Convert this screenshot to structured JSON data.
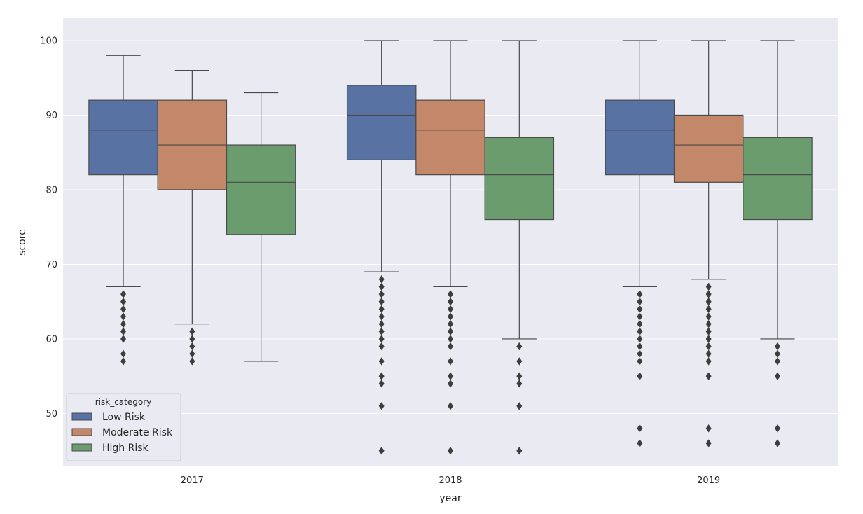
{
  "chart_data": {
    "type": "boxplot",
    "title": "",
    "xlabel": "year",
    "ylabel": "score",
    "ylim": [
      43,
      103
    ],
    "yticks": [
      50,
      60,
      70,
      80,
      90,
      100
    ],
    "grid": true,
    "categories": [
      "2017",
      "2018",
      "2019"
    ],
    "legend": {
      "title": "risk_category",
      "placement": "lower-left",
      "entries": [
        "Low Risk",
        "Moderate Risk",
        "High Risk"
      ]
    },
    "series": [
      {
        "name": "Low Risk",
        "color": "#5873a3",
        "boxes": [
          {
            "whisker_low": 67,
            "q1": 82,
            "median": 88,
            "q3": 92,
            "whisker_high": 98,
            "outliers": [
              66,
              65,
              64,
              63,
              62,
              61,
              60,
              58,
              57
            ]
          },
          {
            "whisker_low": 69,
            "q1": 84,
            "median": 90,
            "q3": 94,
            "whisker_high": 100,
            "outliers": [
              68,
              67,
              66,
              65,
              64,
              63,
              62,
              61,
              60,
              59,
              57,
              55,
              54,
              51,
              45
            ]
          },
          {
            "whisker_low": 67,
            "q1": 82,
            "median": 88,
            "q3": 92,
            "whisker_high": 100,
            "outliers": [
              66,
              65,
              64,
              63,
              62,
              61,
              60,
              59,
              58,
              57,
              55,
              48,
              46
            ]
          }
        ]
      },
      {
        "name": "Moderate Risk",
        "color": "#c3886a",
        "boxes": [
          {
            "whisker_low": 62,
            "q1": 80,
            "median": 86,
            "q3": 92,
            "whisker_high": 96,
            "outliers": [
              61,
              60,
              59,
              58,
              57
            ]
          },
          {
            "whisker_low": 67,
            "q1": 82,
            "median": 88,
            "q3": 92,
            "whisker_high": 100,
            "outliers": [
              66,
              65,
              64,
              63,
              62,
              61,
              60,
              59,
              57,
              55,
              54,
              51,
              45
            ]
          },
          {
            "whisker_low": 68,
            "q1": 81,
            "median": 86,
            "q3": 90,
            "whisker_high": 100,
            "outliers": [
              67,
              66,
              65,
              64,
              63,
              62,
              61,
              60,
              59,
              58,
              57,
              55,
              48,
              46
            ]
          }
        ]
      },
      {
        "name": "High Risk",
        "color": "#6a9c6e",
        "boxes": [
          {
            "whisker_low": 57,
            "q1": 74,
            "median": 81,
            "q3": 86,
            "whisker_high": 93,
            "outliers": []
          },
          {
            "whisker_low": 60,
            "q1": 76,
            "median": 82,
            "q3": 87,
            "whisker_high": 100,
            "outliers": [
              59,
              57,
              55,
              54,
              51,
              45
            ]
          },
          {
            "whisker_low": 60,
            "q1": 76,
            "median": 82,
            "q3": 87,
            "whisker_high": 100,
            "outliers": [
              59,
              58,
              57,
              55,
              48,
              46
            ]
          }
        ]
      }
    ]
  }
}
